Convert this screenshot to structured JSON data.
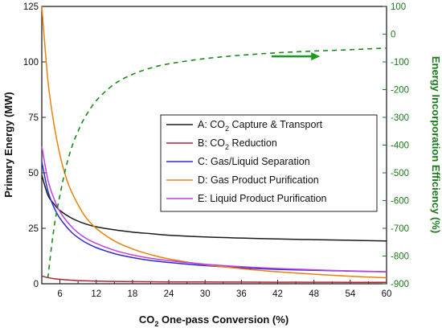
{
  "chart_data": {
    "type": "line",
    "xlabel_main": "CO",
    "xlabel_sub": "2",
    "xlabel_rest": " One-pass Conversion (%)",
    "ylabel": "Primary Energy (MW)",
    "y2label": "Energy Incorporation Efficiency (%)",
    "xlim": [
      3,
      60
    ],
    "ylim": [
      0,
      125
    ],
    "y2lim": [
      -900,
      100
    ],
    "xticks": [
      6,
      12,
      18,
      24,
      30,
      36,
      42,
      48,
      54,
      60
    ],
    "yticks": [
      0,
      25,
      50,
      75,
      100,
      125
    ],
    "y2ticks": [
      100,
      0,
      -100,
      -200,
      -300,
      -400,
      -500,
      -600,
      -700,
      -800,
      -900
    ],
    "grid": false,
    "legend_position": "center-right",
    "series": [
      {
        "name": "A: CO2 Capture & Transport",
        "name_parts": [
          "A: CO",
          "2",
          " Capture & Transport"
        ],
        "color": "#1a1a1a",
        "axis": "left",
        "x": [
          3,
          4,
          5,
          6,
          8,
          10,
          12,
          15,
          18,
          21,
          24,
          30,
          36,
          42,
          48,
          54,
          60
        ],
        "y": [
          49,
          40,
          36,
          33,
          29.5,
          27.2,
          25.7,
          24.3,
          23.3,
          22.6,
          21.9,
          21.1,
          20.6,
          20.2,
          19.9,
          19.6,
          19.3
        ]
      },
      {
        "name": "B: CO2 Reduction",
        "name_parts": [
          "B: CO",
          "2",
          " Reduction"
        ],
        "color": "#b22234",
        "axis": "left",
        "x": [
          3,
          4,
          5,
          6,
          8,
          10,
          12,
          15,
          18,
          21,
          24,
          30,
          36,
          42,
          48,
          54,
          60
        ],
        "y": [
          3.5,
          2.8,
          2.3,
          2.0,
          1.6,
          1.35,
          1.2,
          1.05,
          0.95,
          0.9,
          0.85,
          0.8,
          0.75,
          0.7,
          0.7,
          0.65,
          0.65
        ]
      },
      {
        "name": "C: Gas/Liquid Separation",
        "name_parts": [
          "C: Gas/Liquid Separation"
        ],
        "color": "#2c2ccc",
        "axis": "left",
        "x": [
          3,
          4,
          5,
          6,
          8,
          10,
          12,
          15,
          18,
          21,
          24,
          30,
          36,
          42,
          48,
          54,
          60
        ],
        "y": [
          55,
          42,
          34.5,
          29.5,
          23,
          19,
          16.3,
          13.6,
          11.8,
          10.5,
          9.6,
          8.2,
          7.2,
          6.5,
          6.1,
          5.7,
          5.4
        ]
      },
      {
        "name": "D: Gas Product Purification",
        "name_parts": [
          "D: Gas Product Purification"
        ],
        "color": "#e8820c",
        "axis": "left",
        "x": [
          3,
          4,
          5,
          6,
          7,
          8,
          10,
          12,
          15,
          18,
          21,
          24,
          30,
          36,
          42,
          48,
          54,
          60
        ],
        "y": [
          125,
          92,
          72,
          58,
          48,
          41,
          31,
          25,
          19.3,
          15.7,
          13.1,
          11.2,
          8.6,
          6.8,
          5.4,
          4.3,
          3.4,
          2.7
        ]
      },
      {
        "name": "E: Liquid Product Purification",
        "name_parts": [
          "E: Liquid Product Purification"
        ],
        "color": "#c040e0",
        "axis": "left",
        "x": [
          3,
          4,
          5,
          6,
          8,
          10,
          12,
          15,
          18,
          21,
          24,
          30,
          36,
          42,
          48,
          54,
          60
        ],
        "y": [
          62,
          47,
          38.5,
          32.5,
          25.5,
          21,
          18.2,
          15.1,
          13.0,
          11.5,
          10.4,
          8.8,
          7.7,
          6.9,
          6.3,
          5.8,
          5.4
        ]
      },
      {
        "name": "Energy Incorporation Efficiency",
        "color": "#1a8a1a",
        "axis": "right",
        "dashed": true,
        "x": [
          4,
          5,
          6,
          7,
          8,
          9,
          10,
          12,
          15,
          18,
          21,
          24,
          30,
          36,
          42,
          48,
          54,
          60
        ],
        "y": [
          -880,
          -700,
          -580,
          -480,
          -405,
          -350,
          -305,
          -240,
          -180,
          -145,
          -122,
          -107,
          -88,
          -76,
          -67,
          -61,
          -56,
          -50
        ]
      }
    ],
    "annotation": {
      "type": "arrow",
      "direction": "right",
      "points_to": "right axis",
      "color": "#1a9a1a",
      "x_from": 41,
      "x_to": 49,
      "y2": -80
    }
  }
}
